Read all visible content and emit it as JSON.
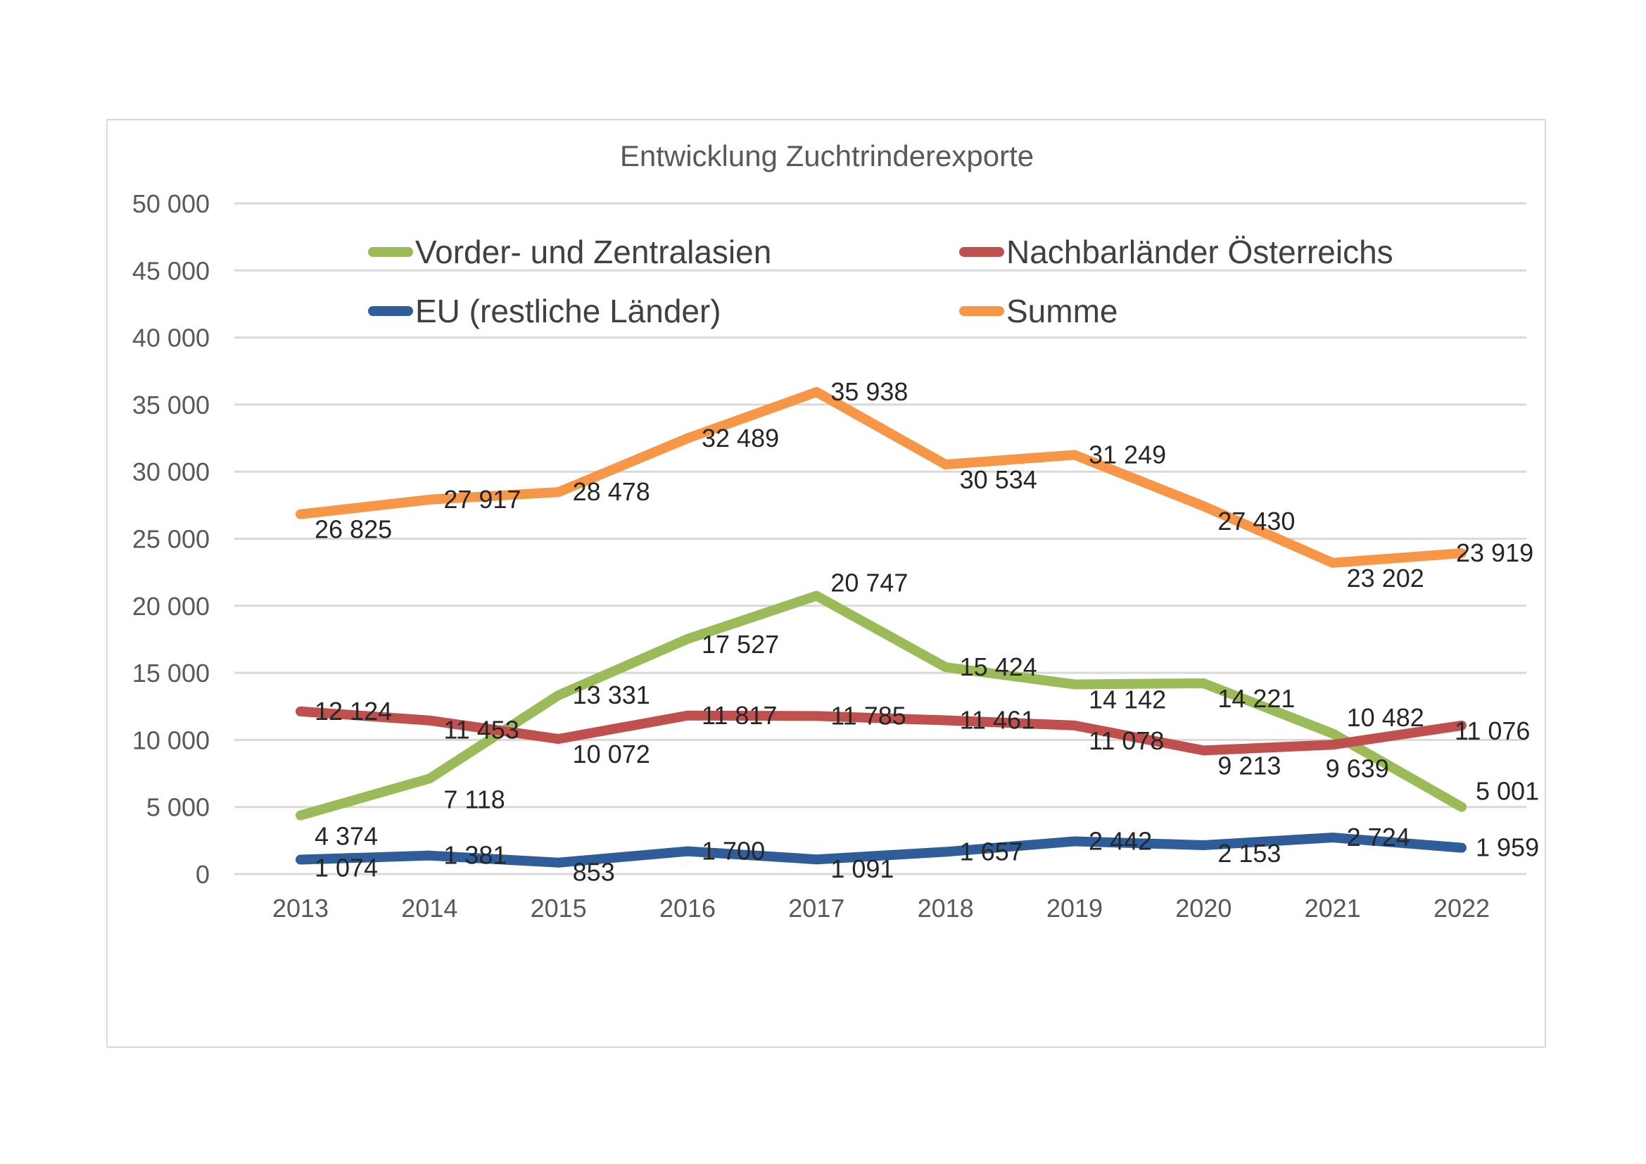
{
  "chart_data": {
    "type": "line",
    "title": "Entwicklung Zuchtrinderexporte",
    "xlabel": "",
    "ylabel": "",
    "x": [
      "2013",
      "2014",
      "2015",
      "2016",
      "2017",
      "2018",
      "2019",
      "2020",
      "2021",
      "2022"
    ],
    "ylim": [
      0,
      50000
    ],
    "yticks": [
      0,
      5000,
      10000,
      15000,
      20000,
      25000,
      30000,
      35000,
      40000,
      45000,
      50000
    ],
    "ytick_labels": [
      "0",
      "5 000",
      "10 000",
      "15 000",
      "20 000",
      "25 000",
      "30 000",
      "35 000",
      "40 000",
      "45 000",
      "50 000"
    ],
    "grid": true,
    "legend_position": "top",
    "series": [
      {
        "name": "Vorder- und Zentralasien",
        "color": "#9BBB59",
        "values": [
          4374,
          7118,
          13331,
          17527,
          20747,
          15424,
          14142,
          14221,
          10482,
          5001
        ],
        "labels": [
          "4 374",
          "7 118",
          "13 331",
          "17 527",
          "20 747",
          "15 424",
          "14 142",
          "14 221",
          "10 482",
          "5 001"
        ]
      },
      {
        "name": "Nachbarländer Österreichs",
        "color": "#C0504D",
        "values": [
          12124,
          11453,
          10072,
          11817,
          11785,
          11461,
          11078,
          9213,
          9639,
          11076
        ],
        "labels": [
          "12 124",
          "11 453",
          "10 072",
          "11 817",
          "11 785",
          "11 461",
          "11 078",
          "9 213",
          "9 639",
          "11 076"
        ]
      },
      {
        "name": "EU (restliche Länder)",
        "color": "#2F5D99",
        "values": [
          1074,
          1381,
          853,
          1700,
          1091,
          1657,
          2442,
          2153,
          2724,
          1959
        ],
        "labels": [
          "1 074",
          "1 381",
          "853",
          "1 700",
          "1 091",
          "1 657",
          "2 442",
          "2 153",
          "2 724",
          "1 959"
        ]
      },
      {
        "name": "Summe",
        "color": "#F79646",
        "values": [
          26825,
          27917,
          28478,
          32489,
          35938,
          30534,
          31249,
          27430,
          23202,
          23919
        ],
        "labels": [
          "26 825",
          "27 917",
          "28 478",
          "32 489",
          "35 938",
          "30 534",
          "31 249",
          "27 430",
          "23 202",
          "23 919"
        ]
      }
    ]
  }
}
